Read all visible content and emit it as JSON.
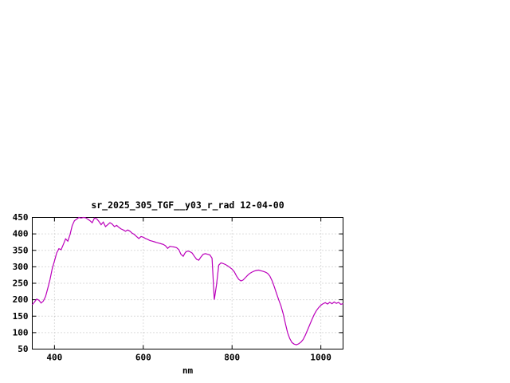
{
  "page": {
    "background": "#ffffff"
  },
  "chart_data": {
    "type": "line",
    "title": "sr_2025_305_TGF__y03_r_rad 12-04-00",
    "xlabel": "nm",
    "ylabel": "",
    "xlim": [
      350,
      1050
    ],
    "ylim": [
      50,
      450
    ],
    "xticks": [
      400,
      600,
      800,
      1000
    ],
    "yticks": [
      50,
      100,
      150,
      200,
      250,
      300,
      350,
      400,
      450
    ],
    "grid": true,
    "legend": "none",
    "line_color": "#bb00bb",
    "series": [
      {
        "name": "sr_2025_305_TGF__y03_r_rad",
        "points": [
          [
            350,
            185
          ],
          [
            355,
            193
          ],
          [
            360,
            202
          ],
          [
            365,
            198
          ],
          [
            370,
            190
          ],
          [
            375,
            196
          ],
          [
            380,
            210
          ],
          [
            385,
            235
          ],
          [
            390,
            262
          ],
          [
            395,
            295
          ],
          [
            400,
            318
          ],
          [
            405,
            342
          ],
          [
            410,
            355
          ],
          [
            415,
            352
          ],
          [
            420,
            368
          ],
          [
            425,
            385
          ],
          [
            430,
            378
          ],
          [
            435,
            398
          ],
          [
            440,
            425
          ],
          [
            445,
            440
          ],
          [
            450,
            445
          ],
          [
            455,
            450
          ],
          [
            460,
            448
          ],
          [
            465,
            450
          ],
          [
            470,
            449
          ],
          [
            475,
            445
          ],
          [
            480,
            440
          ],
          [
            485,
            434
          ],
          [
            490,
            448
          ],
          [
            495,
            446
          ],
          [
            500,
            438
          ],
          [
            505,
            428
          ],
          [
            510,
            436
          ],
          [
            515,
            422
          ],
          [
            520,
            428
          ],
          [
            525,
            434
          ],
          [
            530,
            430
          ],
          [
            535,
            422
          ],
          [
            540,
            426
          ],
          [
            545,
            420
          ],
          [
            550,
            415
          ],
          [
            555,
            412
          ],
          [
            560,
            408
          ],
          [
            565,
            412
          ],
          [
            570,
            408
          ],
          [
            575,
            402
          ],
          [
            580,
            398
          ],
          [
            585,
            392
          ],
          [
            590,
            386
          ],
          [
            595,
            392
          ],
          [
            600,
            390
          ],
          [
            605,
            386
          ],
          [
            610,
            383
          ],
          [
            615,
            380
          ],
          [
            620,
            378
          ],
          [
            625,
            376
          ],
          [
            630,
            374
          ],
          [
            635,
            372
          ],
          [
            640,
            370
          ],
          [
            645,
            368
          ],
          [
            650,
            364
          ],
          [
            655,
            356
          ],
          [
            660,
            362
          ],
          [
            665,
            361
          ],
          [
            670,
            360
          ],
          [
            675,
            358
          ],
          [
            680,
            352
          ],
          [
            685,
            338
          ],
          [
            690,
            332
          ],
          [
            695,
            344
          ],
          [
            700,
            348
          ],
          [
            705,
            346
          ],
          [
            710,
            342
          ],
          [
            715,
            332
          ],
          [
            720,
            323
          ],
          [
            725,
            320
          ],
          [
            730,
            330
          ],
          [
            735,
            338
          ],
          [
            740,
            340
          ],
          [
            745,
            338
          ],
          [
            750,
            336
          ],
          [
            755,
            326
          ],
          [
            760,
            200
          ],
          [
            765,
            245
          ],
          [
            770,
            305
          ],
          [
            775,
            312
          ],
          [
            780,
            310
          ],
          [
            785,
            307
          ],
          [
            790,
            303
          ],
          [
            795,
            298
          ],
          [
            800,
            293
          ],
          [
            805,
            285
          ],
          [
            810,
            272
          ],
          [
            815,
            262
          ],
          [
            820,
            257
          ],
          [
            825,
            260
          ],
          [
            830,
            267
          ],
          [
            835,
            274
          ],
          [
            840,
            280
          ],
          [
            845,
            284
          ],
          [
            850,
            287
          ],
          [
            855,
            289
          ],
          [
            860,
            290
          ],
          [
            865,
            288
          ],
          [
            870,
            286
          ],
          [
            875,
            284
          ],
          [
            880,
            280
          ],
          [
            885,
            272
          ],
          [
            890,
            258
          ],
          [
            895,
            240
          ],
          [
            900,
            220
          ],
          [
            905,
            200
          ],
          [
            910,
            182
          ],
          [
            915,
            158
          ],
          [
            920,
            128
          ],
          [
            925,
            100
          ],
          [
            930,
            82
          ],
          [
            935,
            70
          ],
          [
            940,
            65
          ],
          [
            945,
            63
          ],
          [
            950,
            66
          ],
          [
            955,
            71
          ],
          [
            960,
            79
          ],
          [
            965,
            92
          ],
          [
            970,
            108
          ],
          [
            975,
            124
          ],
          [
            980,
            140
          ],
          [
            985,
            155
          ],
          [
            990,
            167
          ],
          [
            995,
            176
          ],
          [
            1000,
            183
          ],
          [
            1005,
            188
          ],
          [
            1010,
            191
          ],
          [
            1015,
            187
          ],
          [
            1020,
            192
          ],
          [
            1025,
            188
          ],
          [
            1030,
            193
          ],
          [
            1035,
            189
          ],
          [
            1040,
            192
          ],
          [
            1045,
            186
          ],
          [
            1050,
            188
          ]
        ]
      }
    ]
  }
}
